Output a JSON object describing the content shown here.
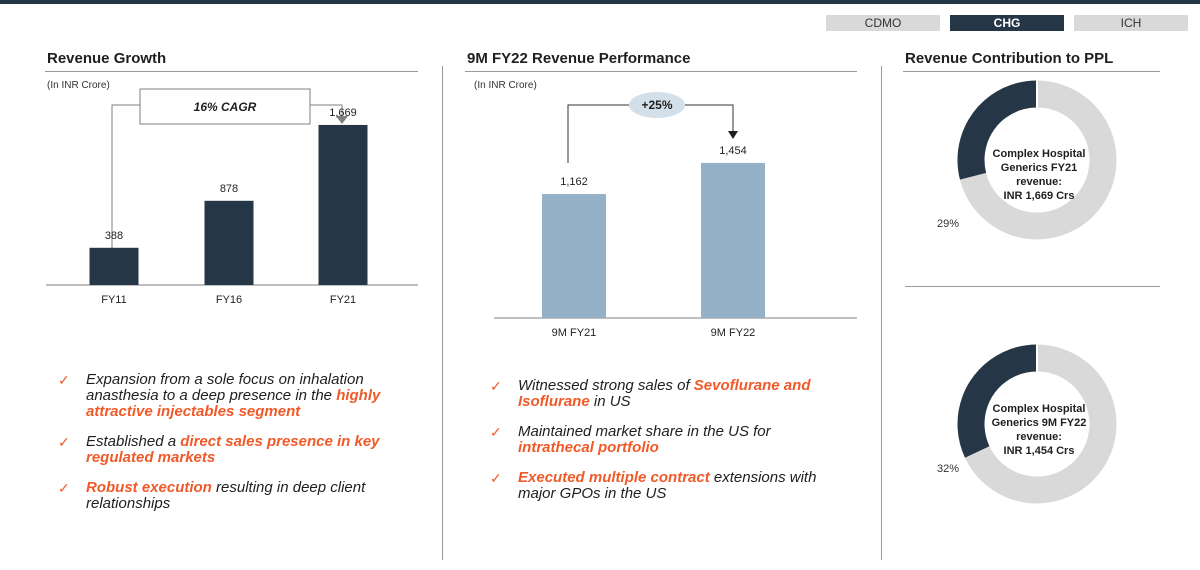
{
  "colors": {
    "navy": "#253746",
    "light_blue": "#95b1c8",
    "orange": "#f05a28",
    "grey_ring": "#d9d9d9",
    "tab_grey": "#d9d9d9",
    "tab_active": "#253746"
  },
  "tabs": [
    {
      "label": "CDMO",
      "active": false
    },
    {
      "label": "CHG",
      "active": true
    },
    {
      "label": "ICH",
      "active": false
    }
  ],
  "left": {
    "title": "Revenue Growth",
    "unit": "(In INR Crore)",
    "cagr_label": "16% CAGR"
  },
  "middle": {
    "title": "9M FY22 Revenue Performance",
    "unit": "(In INR Crore)",
    "growth_label": "+25%"
  },
  "right": {
    "title": "Revenue Contribution to PPL",
    "donut1": {
      "lines": [
        "Complex Hospital",
        "Generics FY21",
        "revenue:",
        "INR 1,669 Crs"
      ],
      "pct_label": "29%"
    },
    "donut2": {
      "lines": [
        "Complex Hospital",
        "Generics 9M FY22",
        "revenue:",
        "INR 1,454 Crs"
      ],
      "pct_label": "32%"
    }
  },
  "chart_data": [
    {
      "type": "bar",
      "title": "Revenue Growth",
      "ylabel": "(In INR Crore)",
      "categories": [
        "FY11",
        "FY16",
        "FY21"
      ],
      "values": [
        388,
        878,
        1669
      ],
      "value_labels": [
        "388",
        "878",
        "1,669"
      ],
      "ylim": [
        0,
        1950
      ],
      "annotation": "16% CAGR",
      "color": "#253746"
    },
    {
      "type": "bar",
      "title": "9M FY22 Revenue Performance",
      "ylabel": "(In INR Crore)",
      "categories": [
        "9M FY21",
        "9M FY22"
      ],
      "values": [
        1162,
        1454
      ],
      "value_labels": [
        "1,162",
        "1,454"
      ],
      "ylim": [
        0,
        1800
      ],
      "annotation": "+25%",
      "color": "#95b1c8"
    },
    {
      "type": "pie",
      "title": "Revenue Contribution to PPL",
      "segments": [
        {
          "label": "Complex Hospital Generics FY21",
          "value": 29,
          "color": "#253746"
        },
        {
          "label": "Rest",
          "value": 71,
          "color": "#d9d9d9"
        }
      ]
    },
    {
      "type": "pie",
      "title": "Revenue Contribution to PPL",
      "segments": [
        {
          "label": "Complex Hospital Generics 9M FY22",
          "value": 32,
          "color": "#253746"
        },
        {
          "label": "Rest",
          "value": 68,
          "color": "#d9d9d9"
        }
      ]
    }
  ],
  "bullets_left": [
    {
      "parts": [
        {
          "t": "Expansion from a sole focus on inhalation anasthesia to a deep presence in the ",
          "hl": false
        },
        {
          "t": "highly attractive injectables segment",
          "hl": true
        }
      ]
    },
    {
      "parts": [
        {
          "t": "Established a ",
          "hl": false
        },
        {
          "t": "direct sales presence in key regulated markets",
          "hl": true
        }
      ]
    },
    {
      "parts": [
        {
          "t": "Robust execution",
          "hl": true
        },
        {
          "t": " resulting in deep client relationships",
          "hl": false
        }
      ]
    }
  ],
  "bullets_middle": [
    {
      "parts": [
        {
          "t": "Witnessed strong sales of ",
          "hl": false
        },
        {
          "t": "Sevoflurane and Isoflurane",
          "hl": true
        },
        {
          "t": " in US",
          "hl": false
        }
      ]
    },
    {
      "parts": [
        {
          "t": "Maintained market share in the US for ",
          "hl": false
        },
        {
          "t": "intrathecal portfolio",
          "hl": true
        }
      ]
    },
    {
      "parts": [
        {
          "t": "Executed multiple contract",
          "hl": true
        },
        {
          "t": " extensions with major GPOs in the US",
          "hl": false
        }
      ]
    }
  ],
  "check_glyph": "✓"
}
